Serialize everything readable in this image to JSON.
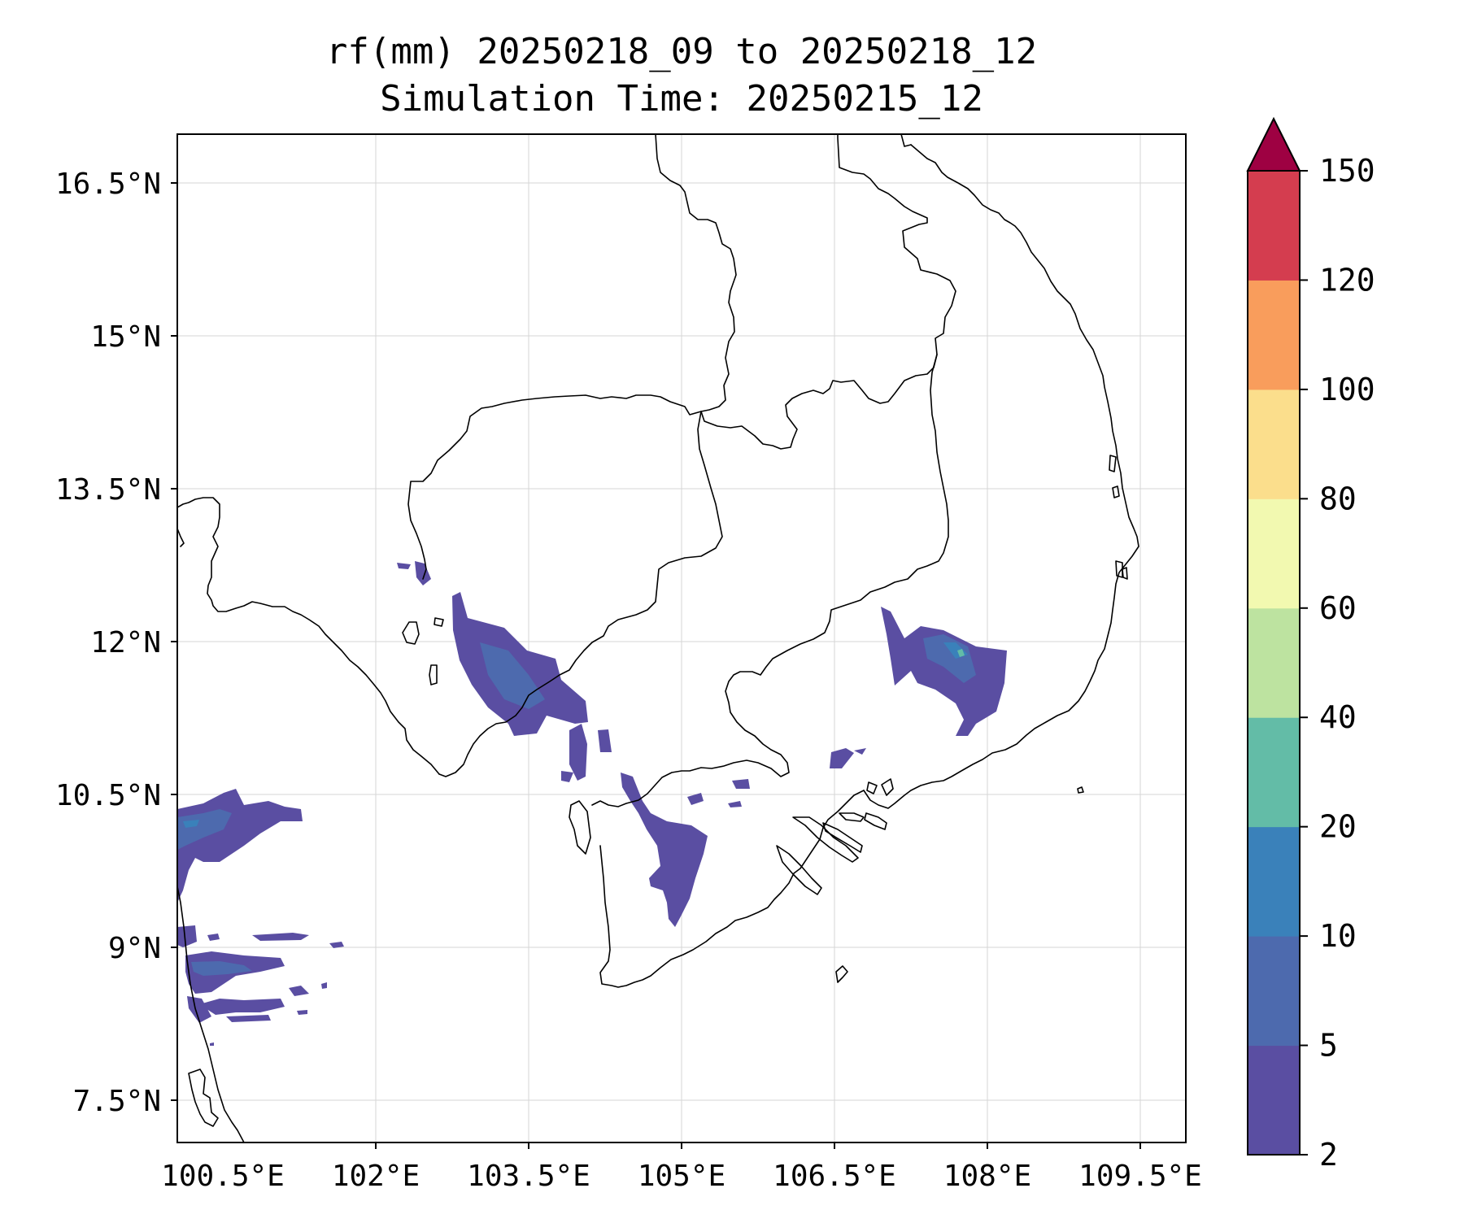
{
  "title_line1": "rf(mm) 20250218_09 to 20250218_12",
  "title_line2": "Simulation Time: 20250215_12",
  "lon_ticks": [
    "100.5°E",
    "102°E",
    "103.5°E",
    "105°E",
    "106.5°E",
    "108°E",
    "109.5°E"
  ],
  "lat_ticks": [
    "16.5°N",
    "15°N",
    "13.5°N",
    "12°N",
    "10.5°N",
    "9°N",
    "7.5°N"
  ],
  "map_extent": {
    "lon_min": 100.05,
    "lon_max": 109.95,
    "lat_min": 7.05,
    "lat_max": 16.95
  },
  "colorbar": {
    "ticks": [
      "2",
      "5",
      "10",
      "20",
      "40",
      "60",
      "80",
      "100",
      "120",
      "150"
    ],
    "colors": [
      "#5a4ea2",
      "#4d6aae",
      "#3a81ba",
      "#63bca7",
      "#bde3a0",
      "#f2f9b0",
      "#fbde8c",
      "#f99d5c",
      "#d43d4f"
    ],
    "extend_color": "#9e0142",
    "extend": "max"
  }
}
